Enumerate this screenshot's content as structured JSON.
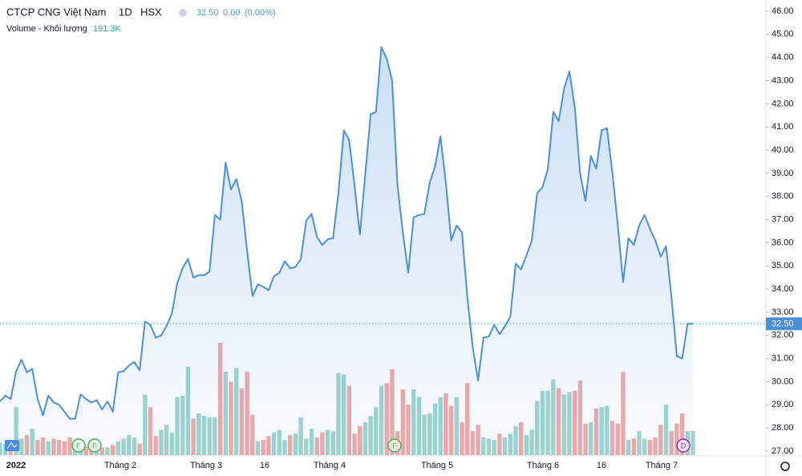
{
  "chart_data": {
    "type": "area",
    "title": "CTCP CNG Việt Nam",
    "interval": "1D",
    "exchange": "HSX",
    "last_price": {
      "value": 32.5,
      "label": "32.50"
    },
    "change": "0.00",
    "change_pct": "(0.00%)",
    "volume_title": "Volume - Khối lượng",
    "volume_last_label": "191.3K",
    "line_color": "#4a90d9",
    "up_color": "#9fd5ce",
    "down_color": "#eeaaaa",
    "ylim": [
      27,
      46
    ],
    "yticks": [
      {
        "value": 27,
        "label": "27.00"
      },
      {
        "value": 28,
        "label": "28.00"
      },
      {
        "value": 29,
        "label": "29.00"
      },
      {
        "value": 30,
        "label": "30.00"
      },
      {
        "value": 31,
        "label": "31.00"
      },
      {
        "value": 32,
        "label": "32.00"
      },
      {
        "value": 33,
        "label": "33.00"
      },
      {
        "value": 34,
        "label": "34.00"
      },
      {
        "value": 35,
        "label": "35.00"
      },
      {
        "value": 36,
        "label": "36.00"
      },
      {
        "value": 37,
        "label": "37.00"
      },
      {
        "value": 38,
        "label": "38.00"
      },
      {
        "value": 39,
        "label": "39.00"
      },
      {
        "value": 40,
        "label": "40.00"
      },
      {
        "value": 41,
        "label": "41.00"
      },
      {
        "value": 42,
        "label": "42.00"
      },
      {
        "value": 43,
        "label": "43.00"
      },
      {
        "value": 44,
        "label": "44.00"
      },
      {
        "value": 45,
        "label": "45.00"
      },
      {
        "value": 46,
        "label": "46.00"
      }
    ],
    "time_labels": [
      "2022",
      "Tháng 2",
      "Tháng 3",
      "16",
      "Tháng 4",
      "Tháng 5",
      "Tháng 6",
      "16",
      "Tháng 7"
    ],
    "events": [
      "F",
      "F",
      "F",
      "D"
    ],
    "price": [
      29.15,
      29.4,
      29.25,
      30.45,
      30.95,
      30.4,
      30.55,
      29.25,
      28.55,
      29.4,
      29.1,
      29.0,
      28.7,
      28.4,
      28.4,
      29.45,
      29.25,
      29.1,
      29.2,
      28.8,
      29.15,
      28.7,
      30.4,
      30.45,
      30.7,
      30.85,
      30.5,
      32.6,
      32.45,
      31.9,
      32.0,
      32.4,
      32.95,
      34.25,
      34.9,
      35.3,
      34.5,
      34.6,
      34.6,
      34.75,
      37.2,
      37.0,
      39.45,
      38.3,
      38.75,
      37.8,
      35.65,
      33.7,
      34.2,
      34.1,
      33.95,
      34.55,
      34.7,
      35.2,
      34.9,
      34.95,
      35.3,
      36.95,
      37.25,
      36.25,
      35.9,
      36.15,
      36.2,
      38.15,
      40.85,
      40.45,
      38.5,
      36.35,
      38.95,
      41.55,
      41.65,
      44.45,
      43.95,
      43.0,
      38.5,
      36.45,
      34.7,
      37.1,
      37.2,
      37.25,
      38.6,
      39.3,
      40.6,
      38.6,
      36.1,
      36.75,
      36.45,
      33.65,
      31.5,
      30.05,
      31.9,
      31.95,
      32.45,
      32.05,
      32.4,
      32.8,
      35.1,
      34.85,
      35.45,
      36.1,
      38.15,
      38.4,
      39.2,
      41.65,
      41.25,
      42.65,
      43.4,
      41.85,
      39.0,
      37.8,
      39.75,
      39.2,
      40.85,
      40.95,
      39.05,
      36.8,
      34.3,
      36.2,
      35.9,
      36.75,
      37.2,
      36.6,
      36.1,
      35.4,
      35.85,
      33.65,
      31.1,
      31.0,
      32.5,
      32.5
    ],
    "volume": [
      100,
      90,
      110,
      380,
      130,
      160,
      210,
      120,
      140,
      110,
      130,
      120,
      110,
      140,
      90,
      60,
      70,
      110,
      90,
      60,
      60,
      80,
      110,
      130,
      160,
      140,
      90,
      480,
      380,
      150,
      200,
      240,
      180,
      460,
      470,
      700,
      290,
      330,
      310,
      300,
      300,
      890,
      660,
      580,
      690,
      530,
      660,
      320,
      110,
      120,
      150,
      180,
      200,
      120,
      160,
      170,
      300,
      130,
      210,
      140,
      180,
      200,
      190,
      650,
      640,
      550,
      170,
      230,
      260,
      310,
      380,
      550,
      570,
      680,
      190,
      520,
      400,
      520,
      460,
      320,
      330,
      410,
      460,
      490,
      390,
      460,
      260,
      570,
      190,
      240,
      140,
      130,
      120,
      170,
      140,
      170,
      230,
      260,
      160,
      200,
      430,
      510,
      510,
      600,
      530,
      480,
      500,
      510,
      590,
      250,
      260,
      370,
      380,
      390,
      270,
      250,
      660,
      120,
      130,
      190,
      130,
      120,
      140,
      240,
      400,
      190,
      250,
      330,
      190,
      191.3
    ]
  }
}
